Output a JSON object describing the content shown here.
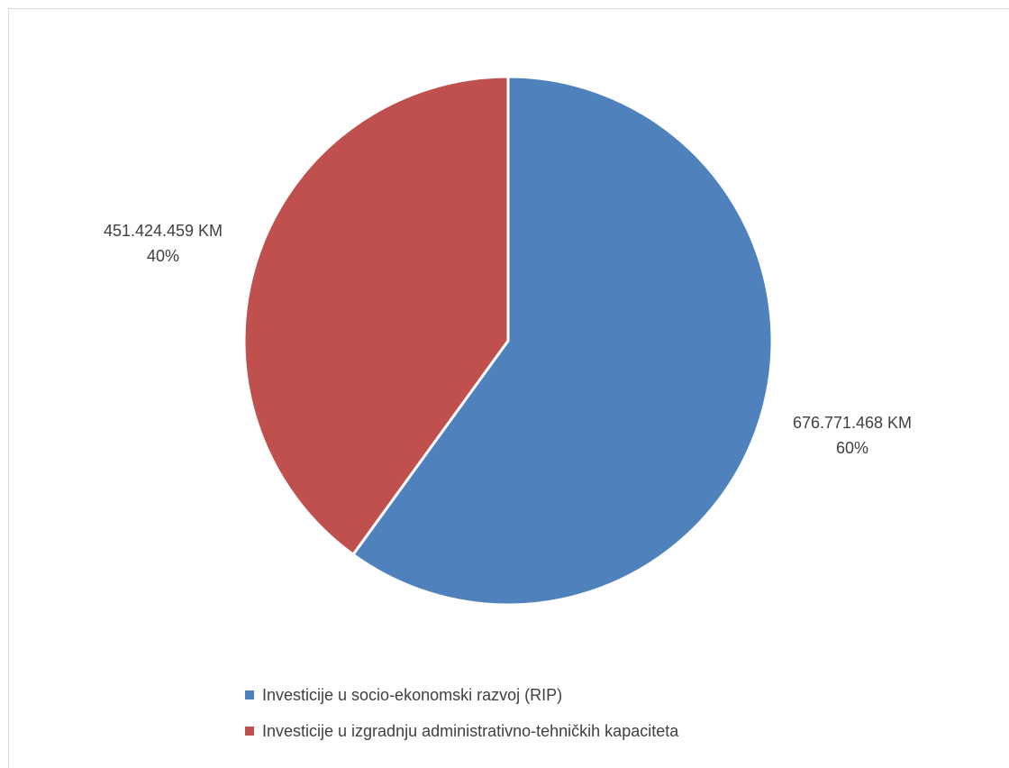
{
  "chart_data": {
    "type": "pie",
    "title": "",
    "slices": [
      {
        "name": "Investicije u socio-ekonomski razvoj (RIP)",
        "value": 676771468,
        "value_label": "676.771.468 KM",
        "percent_label": "60%",
        "color": "#4f81bd"
      },
      {
        "name": "Investicije u izgradnju administrativno-tehničkih kapaciteta",
        "value": 451424459,
        "value_label": "451.424.459 KM",
        "percent_label": "40%",
        "color": "#c0504d"
      }
    ],
    "legend_position": "bottom",
    "slice_border_color": "#ffffff"
  }
}
